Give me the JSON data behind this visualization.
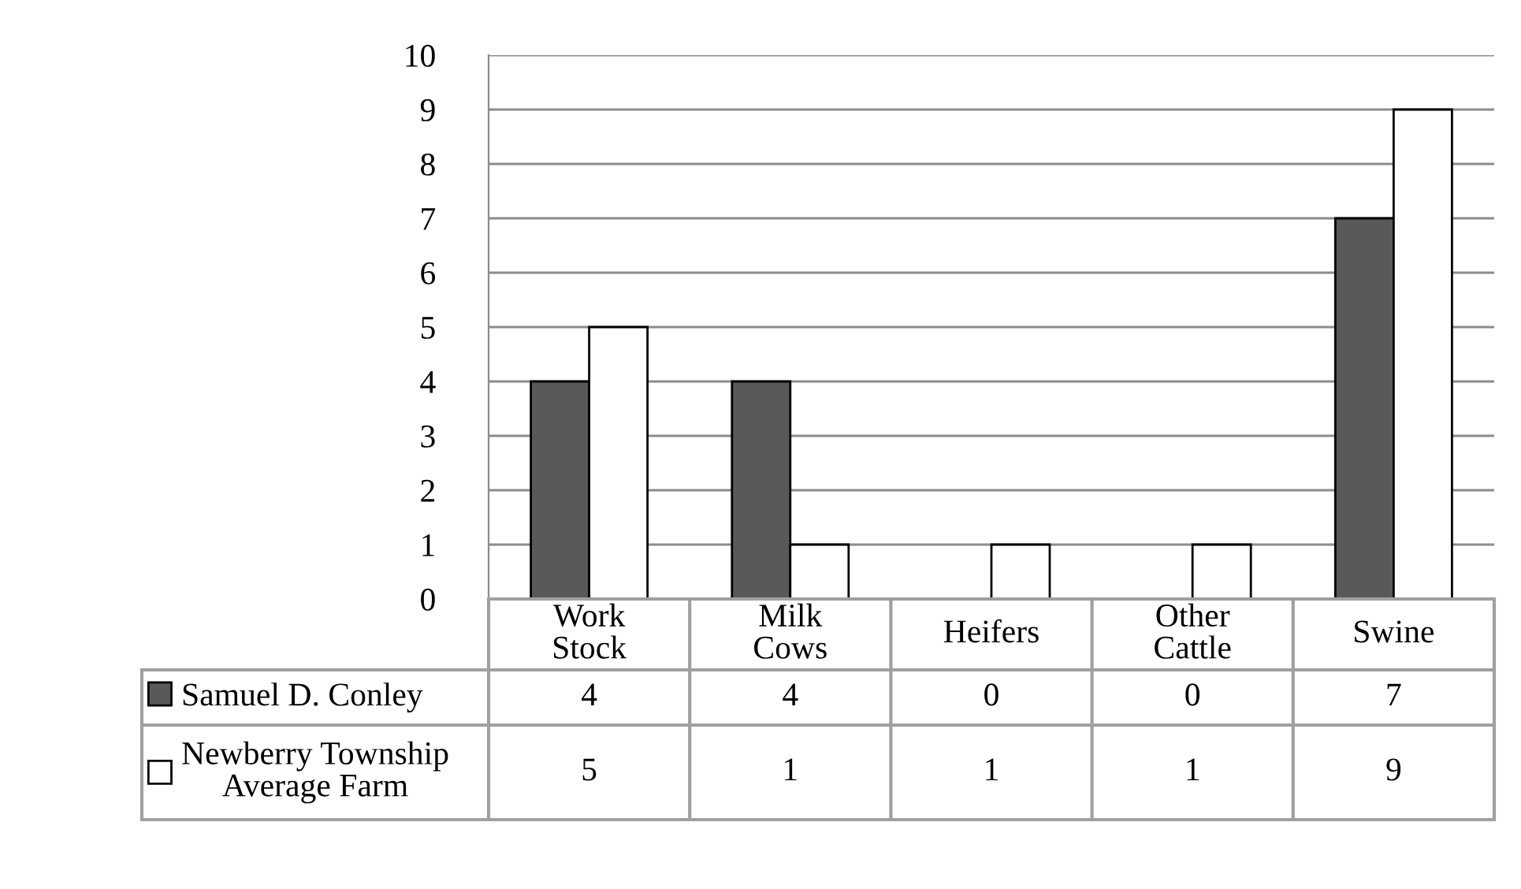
{
  "chart_data": {
    "type": "bar",
    "categories": [
      "Work\nStock",
      "Milk\nCows",
      "Heifers",
      "Other\nCattle",
      "Swine"
    ],
    "series": [
      {
        "name": "Samuel D. Conley",
        "color": "#595959",
        "values": [
          4,
          4,
          0,
          0,
          7
        ]
      },
      {
        "name": "Newberry Township\nAverage Farm",
        "color": "#ffffff",
        "values": [
          5,
          1,
          1,
          1,
          9
        ]
      }
    ],
    "ylim": [
      0,
      10
    ],
    "yticks": [
      0,
      1,
      2,
      3,
      4,
      5,
      6,
      7,
      8,
      9,
      10
    ],
    "grid": "y",
    "legend": "bottom",
    "data_labels": true
  }
}
